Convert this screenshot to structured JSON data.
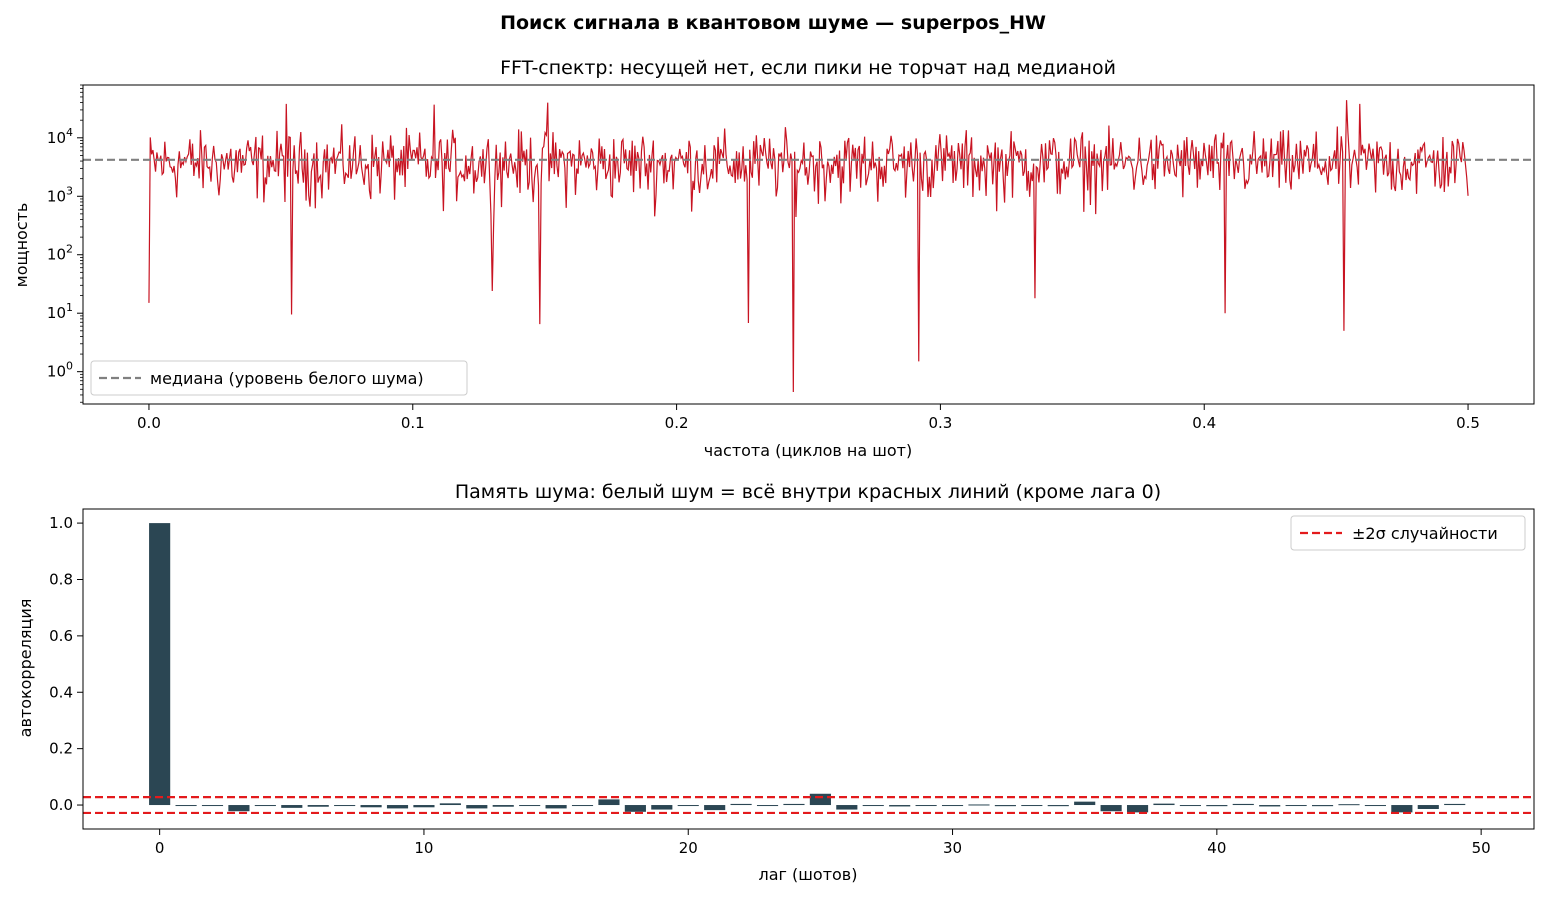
{
  "suptitle": "Поиск сигнала в квантовом шуме — superpos_HW",
  "chart_data": [
    {
      "type": "line",
      "title": "FFT-спектр: несущей нет, если пики не торчат над медианой",
      "xlabel": "частота (циклов на шот)",
      "ylabel": "мощность",
      "yscale": "log",
      "xlim": [
        -0.025,
        0.525
      ],
      "ylim": [
        0.28,
        80000
      ],
      "x_ticks": [
        0.0,
        0.1,
        0.2,
        0.3,
        0.4,
        0.5
      ],
      "x_tick_labels": [
        "0.0",
        "0.1",
        "0.2",
        "0.3",
        "0.4",
        "0.5"
      ],
      "y_ticks": [
        1,
        10,
        100,
        1000,
        10000
      ],
      "y_tick_labels": [
        {
          "base": "10",
          "exp": "0"
        },
        {
          "base": "10",
          "exp": "1"
        },
        {
          "base": "10",
          "exp": "2"
        },
        {
          "base": "10",
          "exp": "3"
        },
        {
          "base": "10",
          "exp": "4"
        }
      ],
      "series": [
        {
          "color": "#c81422",
          "x_range": [
            0.0,
            0.5
          ],
          "n_points": 1000,
          "typical_range": [
            200,
            20000
          ],
          "notable_points": [
            {
              "x": 0.0,
              "y": 15
            },
            {
              "x": 0.054,
              "y": 9.5
            },
            {
              "x": 0.148,
              "y": 6.5
            },
            {
              "x": 0.227,
              "y": 6.8
            },
            {
              "x": 0.244,
              "y": 0.45
            },
            {
              "x": 0.292,
              "y": 1.5
            },
            {
              "x": 0.408,
              "y": 10
            },
            {
              "x": 0.453,
              "y": 5
            },
            {
              "x": 0.13,
              "y": 24
            },
            {
              "x": 0.336,
              "y": 18
            },
            {
              "x": 0.052,
              "y": 38000
            },
            {
              "x": 0.108,
              "y": 37000
            },
            {
              "x": 0.151,
              "y": 40000
            },
            {
              "x": 0.454,
              "y": 44000
            },
            {
              "x": 0.459,
              "y": 38000
            }
          ]
        }
      ],
      "hlines": [
        {
          "name": "медиана (уровень белого шума)",
          "y": 4200,
          "color": "#808080",
          "style": "dashed"
        }
      ],
      "legend_position": "lower-left",
      "grid": false
    },
    {
      "type": "bar",
      "title": "Память шума: белый шум = всё внутри красных линий (кроме лага 0)",
      "xlabel": "лаг (шотов)",
      "ylabel": "автокорреляция",
      "xlim": [
        -2.9,
        52
      ],
      "ylim": [
        -0.085,
        1.05
      ],
      "x_ticks": [
        0,
        10,
        20,
        30,
        40,
        50
      ],
      "x_tick_labels": [
        "0",
        "10",
        "20",
        "30",
        "40",
        "50"
      ],
      "y_ticks": [
        0.0,
        0.2,
        0.4,
        0.6,
        0.8,
        1.0
      ],
      "y_tick_labels": [
        "0.0",
        "0.2",
        "0.4",
        "0.6",
        "0.8",
        "1.0"
      ],
      "bar_color": "#2b4653",
      "lags": [
        0,
        1,
        2,
        3,
        4,
        5,
        6,
        7,
        8,
        9,
        10,
        11,
        12,
        13,
        14,
        15,
        16,
        17,
        18,
        19,
        20,
        21,
        22,
        23,
        24,
        25,
        26,
        27,
        28,
        29,
        30,
        31,
        32,
        33,
        34,
        35,
        36,
        37,
        38,
        39,
        40,
        41,
        42,
        43,
        44,
        45,
        46,
        47,
        48,
        49
      ],
      "values": [
        1.0,
        -0.002,
        0.0,
        -0.022,
        0.0,
        -0.01,
        -0.006,
        0.0,
        -0.008,
        -0.012,
        -0.008,
        0.006,
        -0.012,
        -0.006,
        -0.003,
        -0.012,
        -0.002,
        0.02,
        -0.024,
        -0.016,
        -0.002,
        -0.018,
        0.004,
        -0.003,
        0.004,
        0.04,
        -0.016,
        0.0,
        -0.005,
        -0.003,
        -0.002,
        0.002,
        -0.004,
        -0.002,
        -0.004,
        0.012,
        -0.022,
        -0.026,
        0.005,
        0.0,
        -0.004,
        0.004,
        -0.005,
        -0.003,
        -0.004,
        0.003,
        -0.002,
        -0.026,
        -0.014,
        0.004
      ],
      "hlines": [
        {
          "name": "±2σ случайности",
          "y": 0.028,
          "color": "#e31a1c",
          "style": "dashed"
        },
        {
          "name": "",
          "y": -0.028,
          "color": "#e31a1c",
          "style": "dashed"
        }
      ],
      "legend_position": "top-right",
      "grid": false
    }
  ]
}
